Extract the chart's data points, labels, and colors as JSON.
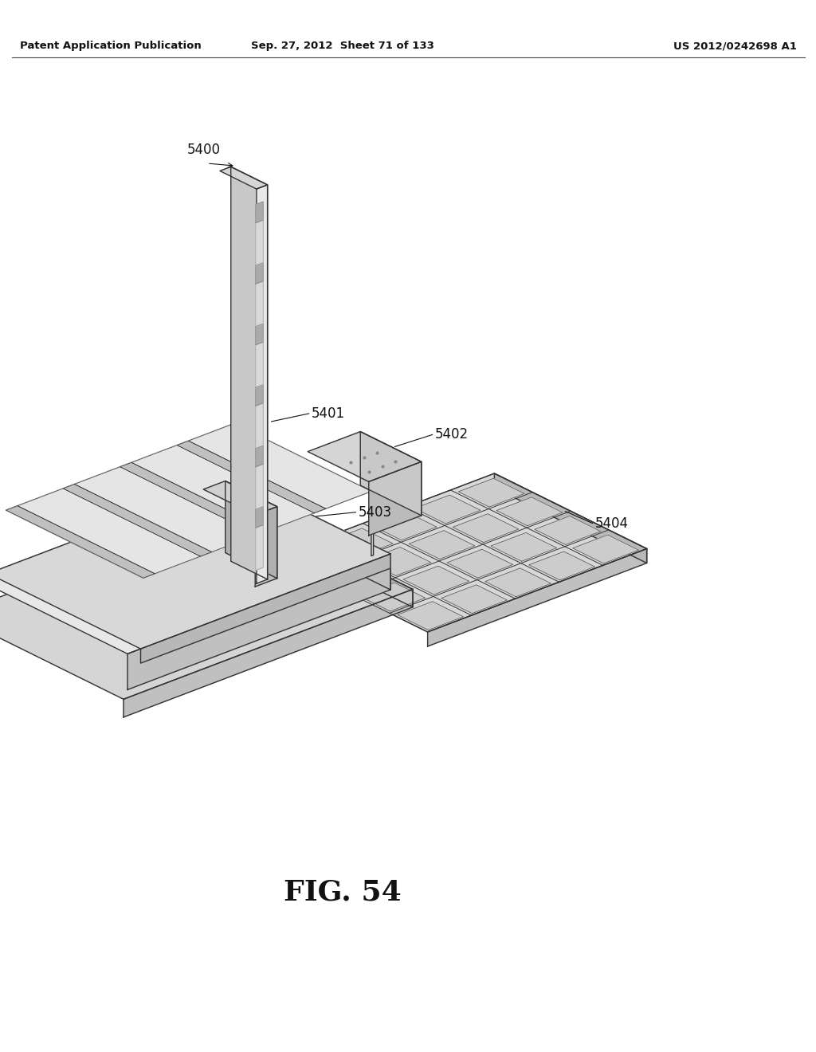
{
  "header_left": "Patent Application Publication",
  "header_mid": "Sep. 27, 2012  Sheet 71 of 133",
  "header_right": "US 2012/0242698 A1",
  "figure_label": "FIG. 54",
  "bg_color": "#ffffff",
  "line_color": "#333333",
  "lw_main": 1.0,
  "lw_thin": 0.6,
  "c_white": "#f5f5f5",
  "c_light": "#e0e0e0",
  "c_mid": "#c8c8c8",
  "c_dark": "#aaaaaa",
  "c_stripe": "#b8b8b8"
}
